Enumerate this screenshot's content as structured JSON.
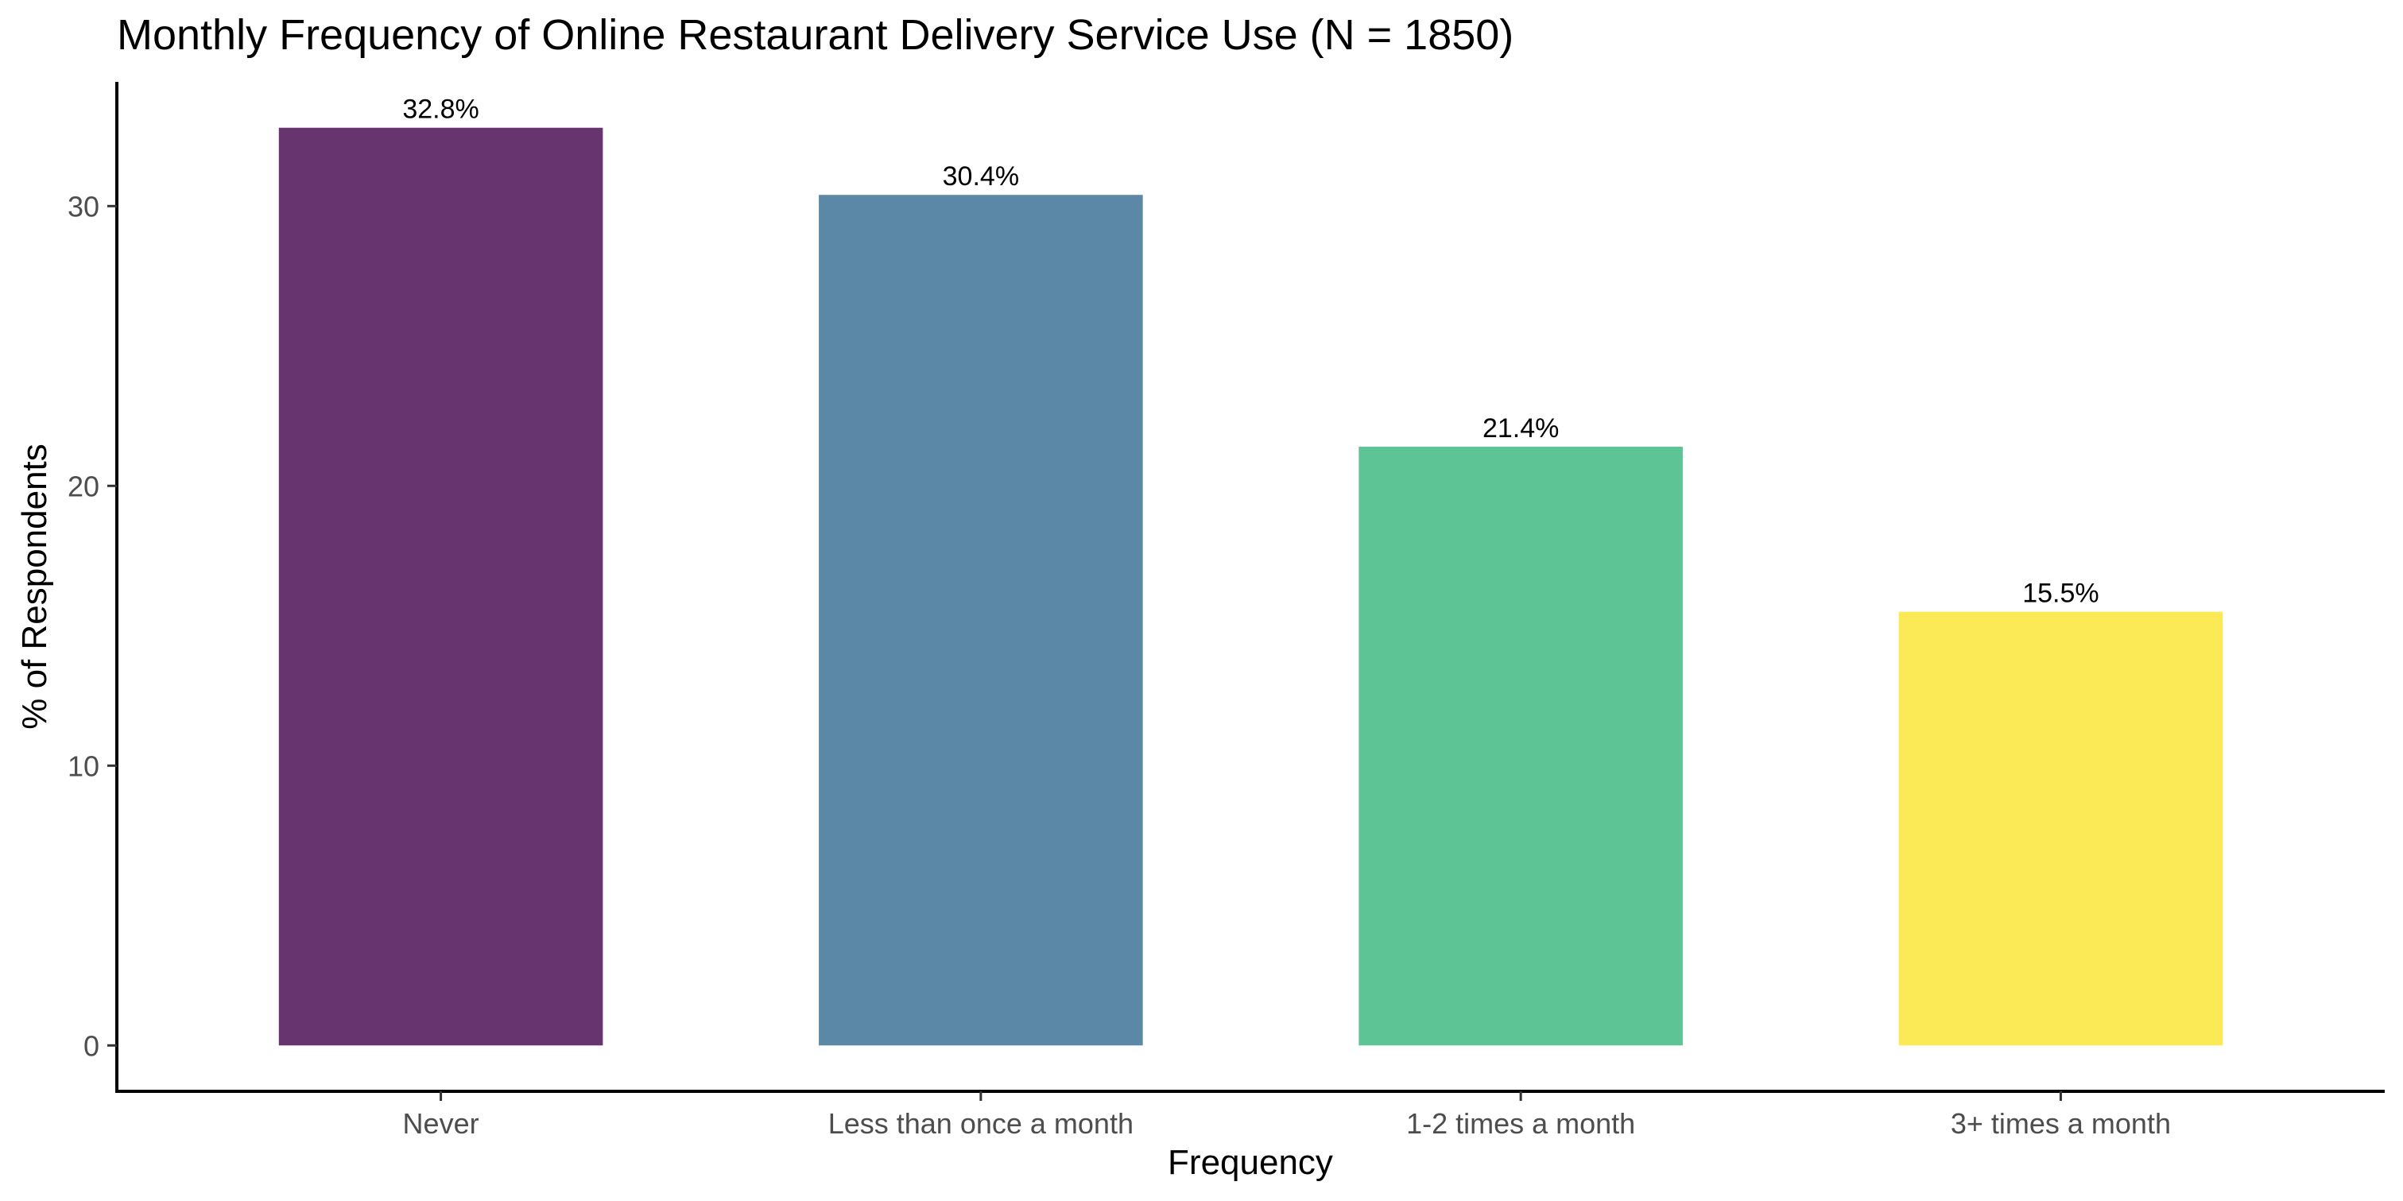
{
  "chart_data": {
    "type": "bar",
    "title": "Monthly Frequency of Online Restaurant Delivery Service Use (N = 1850)",
    "xlabel": "Frequency",
    "ylabel": "% of Respondents",
    "categories": [
      "Never",
      "Less than once a month",
      "1-2 times a month",
      "3+ times a month"
    ],
    "values": [
      32.8,
      30.4,
      21.4,
      15.5
    ],
    "data_labels": [
      "32.8%",
      "30.4%",
      "21.4%",
      "15.5%"
    ],
    "colors": [
      "#68346f",
      "#5b88a6",
      "#5dc595",
      "#fbea55"
    ],
    "yticks": [
      0,
      10,
      20,
      30
    ],
    "ylim": [
      -1.64,
      34.44
    ],
    "grid": false,
    "legend": "none"
  }
}
